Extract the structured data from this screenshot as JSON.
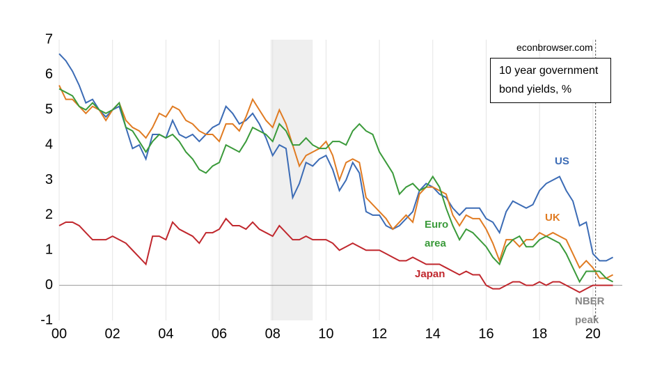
{
  "chart_data": {
    "type": "line",
    "title": "10 year government bond yields, %",
    "source": "econbrowser.com",
    "annotations": [
      "NBER peak"
    ],
    "recession": [
      2007.92,
      2009.5
    ],
    "nber_peak": 2020.1,
    "xlim": [
      2000,
      2021.1
    ],
    "ylim": [
      -1,
      7
    ],
    "yticks": [
      -1,
      0,
      1,
      2,
      3,
      4,
      5,
      6,
      7
    ],
    "xticks": [
      {
        "value": 2000,
        "label": "00"
      },
      {
        "value": 2002,
        "label": "02"
      },
      {
        "value": 2004,
        "label": "04"
      },
      {
        "value": 2006,
        "label": "06"
      },
      {
        "value": 2008,
        "label": "08"
      },
      {
        "value": 2010,
        "label": "10"
      },
      {
        "value": 2012,
        "label": "12"
      },
      {
        "value": 2014,
        "label": "14"
      },
      {
        "value": 2016,
        "label": "16"
      },
      {
        "value": 2018,
        "label": "18"
      },
      {
        "value": 2020,
        "label": "20"
      }
    ],
    "grid": true,
    "x": [
      2000,
      2000.25,
      2000.5,
      2000.75,
      2001,
      2001.25,
      2001.5,
      2001.75,
      2002,
      2002.25,
      2002.5,
      2002.75,
      2003,
      2003.25,
      2003.5,
      2003.75,
      2004,
      2004.25,
      2004.5,
      2004.75,
      2005,
      2005.25,
      2005.5,
      2005.75,
      2006,
      2006.25,
      2006.5,
      2006.75,
      2007,
      2007.25,
      2007.5,
      2007.75,
      2008,
      2008.25,
      2008.5,
      2008.75,
      2009,
      2009.25,
      2009.5,
      2009.75,
      2010,
      2010.25,
      2010.5,
      2010.75,
      2011,
      2011.25,
      2011.5,
      2011.75,
      2012,
      2012.25,
      2012.5,
      2012.75,
      2013,
      2013.25,
      2013.5,
      2013.75,
      2014,
      2014.25,
      2014.5,
      2014.75,
      2015,
      2015.25,
      2015.5,
      2015.75,
      2016,
      2016.25,
      2016.5,
      2016.75,
      2017,
      2017.25,
      2017.5,
      2017.75,
      2018,
      2018.25,
      2018.5,
      2018.75,
      2019,
      2019.25,
      2019.5,
      2019.75,
      2020,
      2020.25,
      2020.5,
      2020.75
    ],
    "series": [
      {
        "name": "US",
        "color": "#3b6bb5",
        "values": [
          6.6,
          6.4,
          6.1,
          5.7,
          5.2,
          5.3,
          5.0,
          4.8,
          5.0,
          5.1,
          4.5,
          3.9,
          4.0,
          3.6,
          4.3,
          4.3,
          4.2,
          4.7,
          4.3,
          4.2,
          4.3,
          4.1,
          4.3,
          4.5,
          4.6,
          5.1,
          4.9,
          4.6,
          4.7,
          4.9,
          4.6,
          4.2,
          3.7,
          4.0,
          3.9,
          2.5,
          2.9,
          3.5,
          3.4,
          3.6,
          3.7,
          3.3,
          2.7,
          3.0,
          3.5,
          3.2,
          2.1,
          2.0,
          2.0,
          1.7,
          1.6,
          1.7,
          1.9,
          2.1,
          2.7,
          2.9,
          2.8,
          2.6,
          2.5,
          2.2,
          2.0,
          2.2,
          2.2,
          2.2,
          1.9,
          1.8,
          1.5,
          2.1,
          2.4,
          2.3,
          2.2,
          2.3,
          2.7,
          2.9,
          3.0,
          3.1,
          2.7,
          2.4,
          1.7,
          1.8,
          0.9,
          0.7,
          0.7,
          0.8
        ]
      },
      {
        "name": "UK",
        "color": "#e07b22",
        "values": [
          5.7,
          5.3,
          5.3,
          5.1,
          4.9,
          5.1,
          5.0,
          4.7,
          5.0,
          5.2,
          4.7,
          4.5,
          4.4,
          4.2,
          4.5,
          4.9,
          4.8,
          5.1,
          5.0,
          4.7,
          4.6,
          4.4,
          4.3,
          4.3,
          4.1,
          4.6,
          4.6,
          4.4,
          4.8,
          5.3,
          5.0,
          4.7,
          4.5,
          5.0,
          4.6,
          4.0,
          3.4,
          3.7,
          3.8,
          3.9,
          4.1,
          3.7,
          3.0,
          3.5,
          3.6,
          3.5,
          2.5,
          2.3,
          2.1,
          1.9,
          1.6,
          1.8,
          2.0,
          1.8,
          2.6,
          2.8,
          2.8,
          2.7,
          2.6,
          2.0,
          1.7,
          2.0,
          1.9,
          1.9,
          1.6,
          1.2,
          0.7,
          1.3,
          1.3,
          1.1,
          1.3,
          1.3,
          1.5,
          1.4,
          1.5,
          1.4,
          1.3,
          0.9,
          0.5,
          0.7,
          0.5,
          0.2,
          0.2,
          0.3
        ]
      },
      {
        "name": "Euro area",
        "color": "#3a9a3a",
        "values": [
          5.6,
          5.5,
          5.4,
          5.1,
          5.0,
          5.2,
          5.0,
          4.9,
          5.0,
          5.2,
          4.5,
          4.4,
          4.1,
          3.8,
          4.1,
          4.3,
          4.2,
          4.3,
          4.1,
          3.8,
          3.6,
          3.3,
          3.2,
          3.4,
          3.5,
          4.0,
          3.9,
          3.8,
          4.1,
          4.5,
          4.4,
          4.3,
          4.1,
          4.6,
          4.4,
          4.0,
          4.0,
          4.2,
          4.0,
          3.9,
          3.9,
          4.1,
          4.1,
          4.0,
          4.4,
          4.6,
          4.4,
          4.3,
          3.8,
          3.5,
          3.2,
          2.6,
          2.8,
          2.9,
          2.7,
          2.8,
          3.1,
          2.8,
          2.2,
          1.7,
          1.3,
          1.6,
          1.5,
          1.3,
          1.1,
          0.8,
          0.6,
          1.1,
          1.3,
          1.4,
          1.1,
          1.1,
          1.3,
          1.4,
          1.3,
          1.2,
          0.9,
          0.5,
          0.1,
          0.4,
          0.4,
          0.4,
          0.2,
          0.1
        ]
      },
      {
        "name": "Japan",
        "color": "#c0272d",
        "values": [
          1.7,
          1.8,
          1.8,
          1.7,
          1.5,
          1.3,
          1.3,
          1.3,
          1.4,
          1.3,
          1.2,
          1.0,
          0.8,
          0.6,
          1.4,
          1.4,
          1.3,
          1.8,
          1.6,
          1.5,
          1.4,
          1.2,
          1.5,
          1.5,
          1.6,
          1.9,
          1.7,
          1.7,
          1.6,
          1.8,
          1.6,
          1.5,
          1.4,
          1.7,
          1.5,
          1.3,
          1.3,
          1.4,
          1.3,
          1.3,
          1.3,
          1.2,
          1.0,
          1.1,
          1.2,
          1.1,
          1.0,
          1.0,
          1.0,
          0.9,
          0.8,
          0.7,
          0.7,
          0.8,
          0.7,
          0.6,
          0.6,
          0.6,
          0.5,
          0.4,
          0.3,
          0.4,
          0.3,
          0.3,
          0.0,
          -0.1,
          -0.1,
          0.0,
          0.1,
          0.1,
          0.0,
          0.0,
          0.1,
          0.0,
          0.1,
          0.1,
          0.0,
          -0.1,
          -0.2,
          -0.1,
          0.0,
          0.0,
          0.0,
          0.0
        ]
      }
    ]
  }
}
